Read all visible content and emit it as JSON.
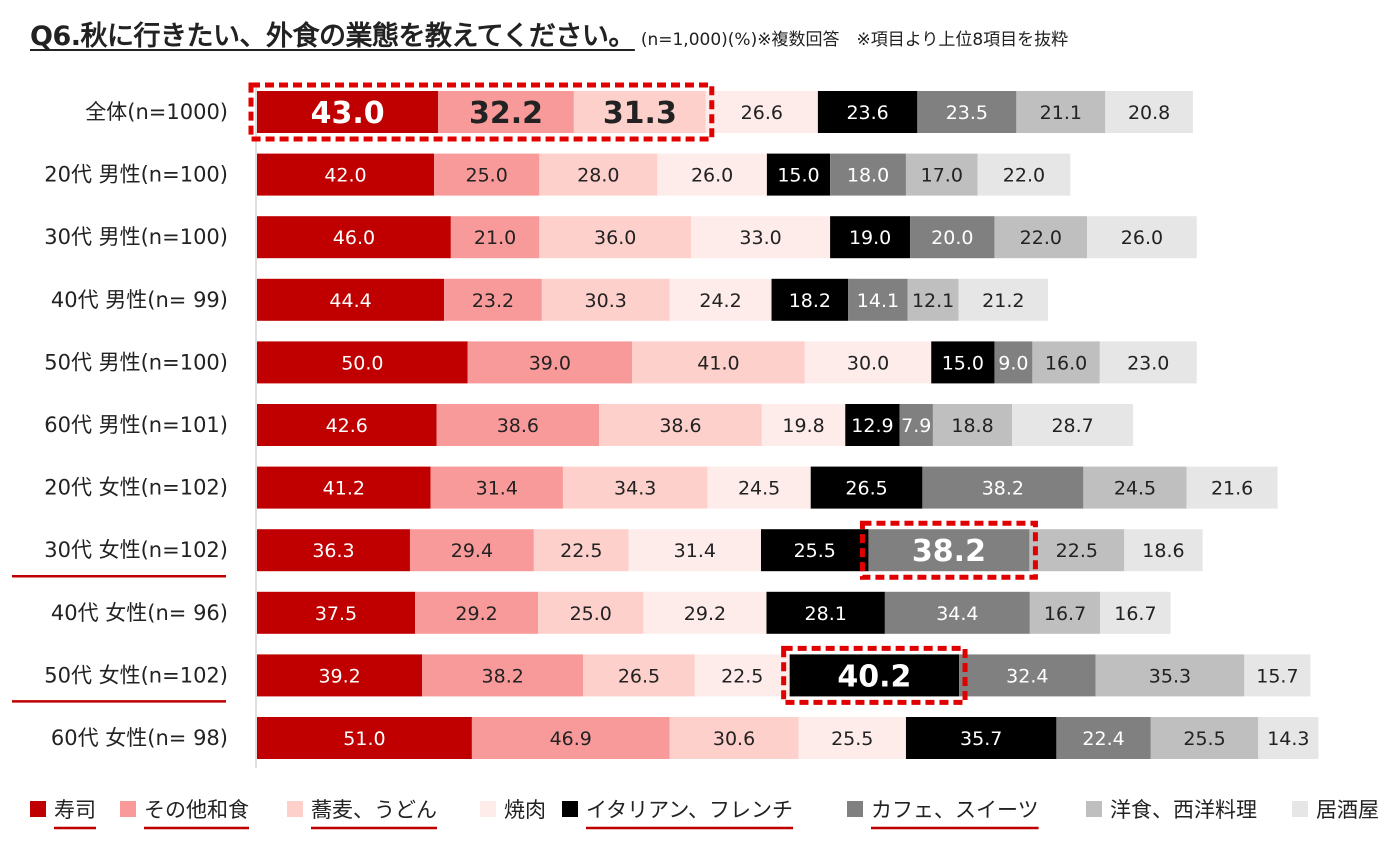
{
  "title": {
    "main": "Q6.秋に行きたい、外食の業態を教えてください。",
    "note": "(n=1,000)(%)※複数回答　※項目より上位8項目を抜粋"
  },
  "chart_data": {
    "type": "bar",
    "orientation": "horizontal",
    "stacked": true,
    "categories": [
      "全体(n=1000)",
      "20代 男性(n=100)",
      "30代 男性(n=100)",
      "40代 男性(n=  99)",
      "50代 男性(n=100)",
      "60代 男性(n=101)",
      "20代 女性(n=102)",
      "30代 女性(n=102)",
      "40代 女性(n=  96)",
      "50代 女性(n=102)",
      "60代 女性(n=  98)"
    ],
    "underlined_categories": [
      7,
      9
    ],
    "series": [
      {
        "name": "寿司",
        "color": "#c00000",
        "text_color": "#ffffff",
        "values": [
          43.0,
          42.0,
          46.0,
          44.4,
          50.0,
          42.6,
          41.2,
          36.3,
          37.5,
          39.2,
          51.0
        ]
      },
      {
        "name": "その他和食",
        "color": "#f99a9a",
        "text_color": "#222222",
        "values": [
          32.2,
          25.0,
          21.0,
          23.2,
          39.0,
          38.6,
          31.4,
          29.4,
          29.2,
          38.2,
          46.9
        ]
      },
      {
        "name": "蕎麦、うどん",
        "color": "#fdd0cc",
        "text_color": "#222222",
        "values": [
          31.3,
          28.0,
          36.0,
          30.3,
          41.0,
          38.6,
          34.3,
          22.5,
          25.0,
          26.5,
          30.6
        ]
      },
      {
        "name": "焼肉",
        "color": "#feeceb",
        "text_color": "#222222",
        "values": [
          26.6,
          26.0,
          33.0,
          24.2,
          30.0,
          19.8,
          24.5,
          31.4,
          29.2,
          22.5,
          25.5
        ]
      },
      {
        "name": "イタリアン、フレンチ",
        "color": "#000000",
        "text_color": "#ffffff",
        "values": [
          23.6,
          15.0,
          19.0,
          18.2,
          15.0,
          12.9,
          26.5,
          25.5,
          28.1,
          40.2,
          35.7
        ]
      },
      {
        "name": "カフェ、スイーツ",
        "color": "#808080",
        "text_color": "#ffffff",
        "values": [
          23.5,
          18.0,
          20.0,
          14.1,
          9.0,
          7.9,
          38.2,
          38.2,
          34.4,
          32.4,
          22.4
        ]
      },
      {
        "name": "洋食、西洋料理",
        "color": "#bfbfbf",
        "text_color": "#222222",
        "values": [
          21.1,
          17.0,
          22.0,
          12.1,
          16.0,
          18.8,
          24.5,
          22.5,
          16.7,
          35.3,
          25.5
        ]
      },
      {
        "name": "居酒屋",
        "color": "#e6e6e6",
        "text_color": "#222222",
        "values": [
          20.8,
          22.0,
          26.0,
          21.2,
          23.0,
          28.7,
          21.6,
          18.6,
          16.7,
          15.7,
          14.3
        ]
      }
    ],
    "highlights": [
      {
        "row": 0,
        "series_from": 0,
        "series_to": 2
      },
      {
        "row": 7,
        "series_from": 5,
        "series_to": 5
      },
      {
        "row": 9,
        "series_from": 4,
        "series_to": 4
      }
    ],
    "underlined_legend": [
      0,
      1,
      2,
      4,
      5
    ]
  }
}
